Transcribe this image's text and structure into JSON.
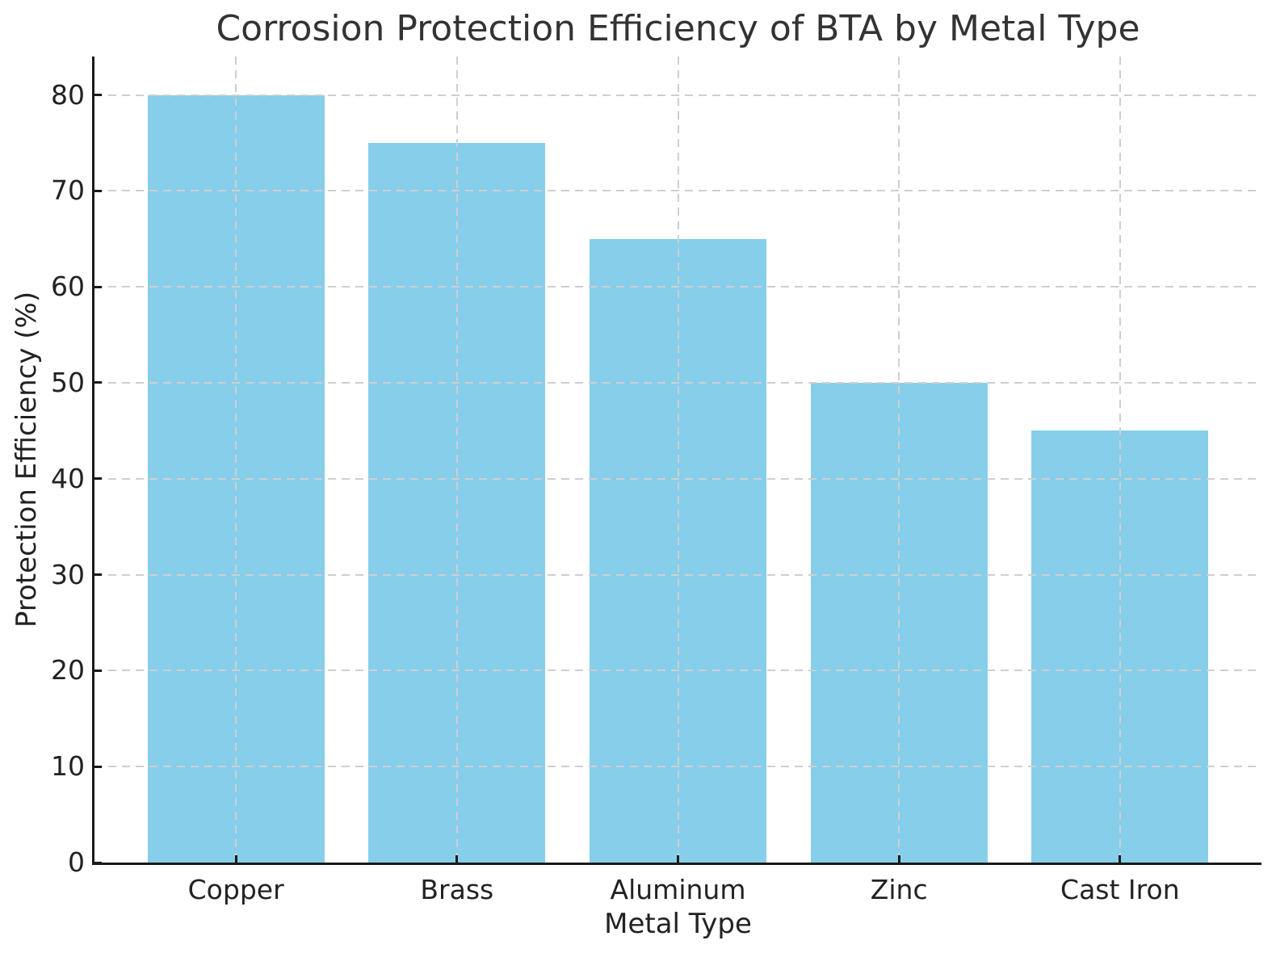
{
  "chart_data": {
    "type": "bar",
    "title": "Corrosion Protection Efficiency of BTA by Metal Type",
    "xlabel": "Metal Type",
    "ylabel": "Protection Efficiency (%)",
    "categories": [
      "Copper",
      "Brass",
      "Aluminum",
      "Zinc",
      "Cast Iron"
    ],
    "values": [
      80,
      75,
      65,
      50,
      45
    ],
    "yticks": [
      0,
      10,
      20,
      30,
      40,
      50,
      60,
      70,
      80
    ],
    "ylim": [
      0,
      84
    ],
    "bar_color": "#87CEEB",
    "grid": "dashed",
    "grid_color": "#cfcfcf",
    "axis_color": "#1a1a1a",
    "text_color": "#222222",
    "legend_position": "none",
    "bar_width_fraction": 0.8
  }
}
